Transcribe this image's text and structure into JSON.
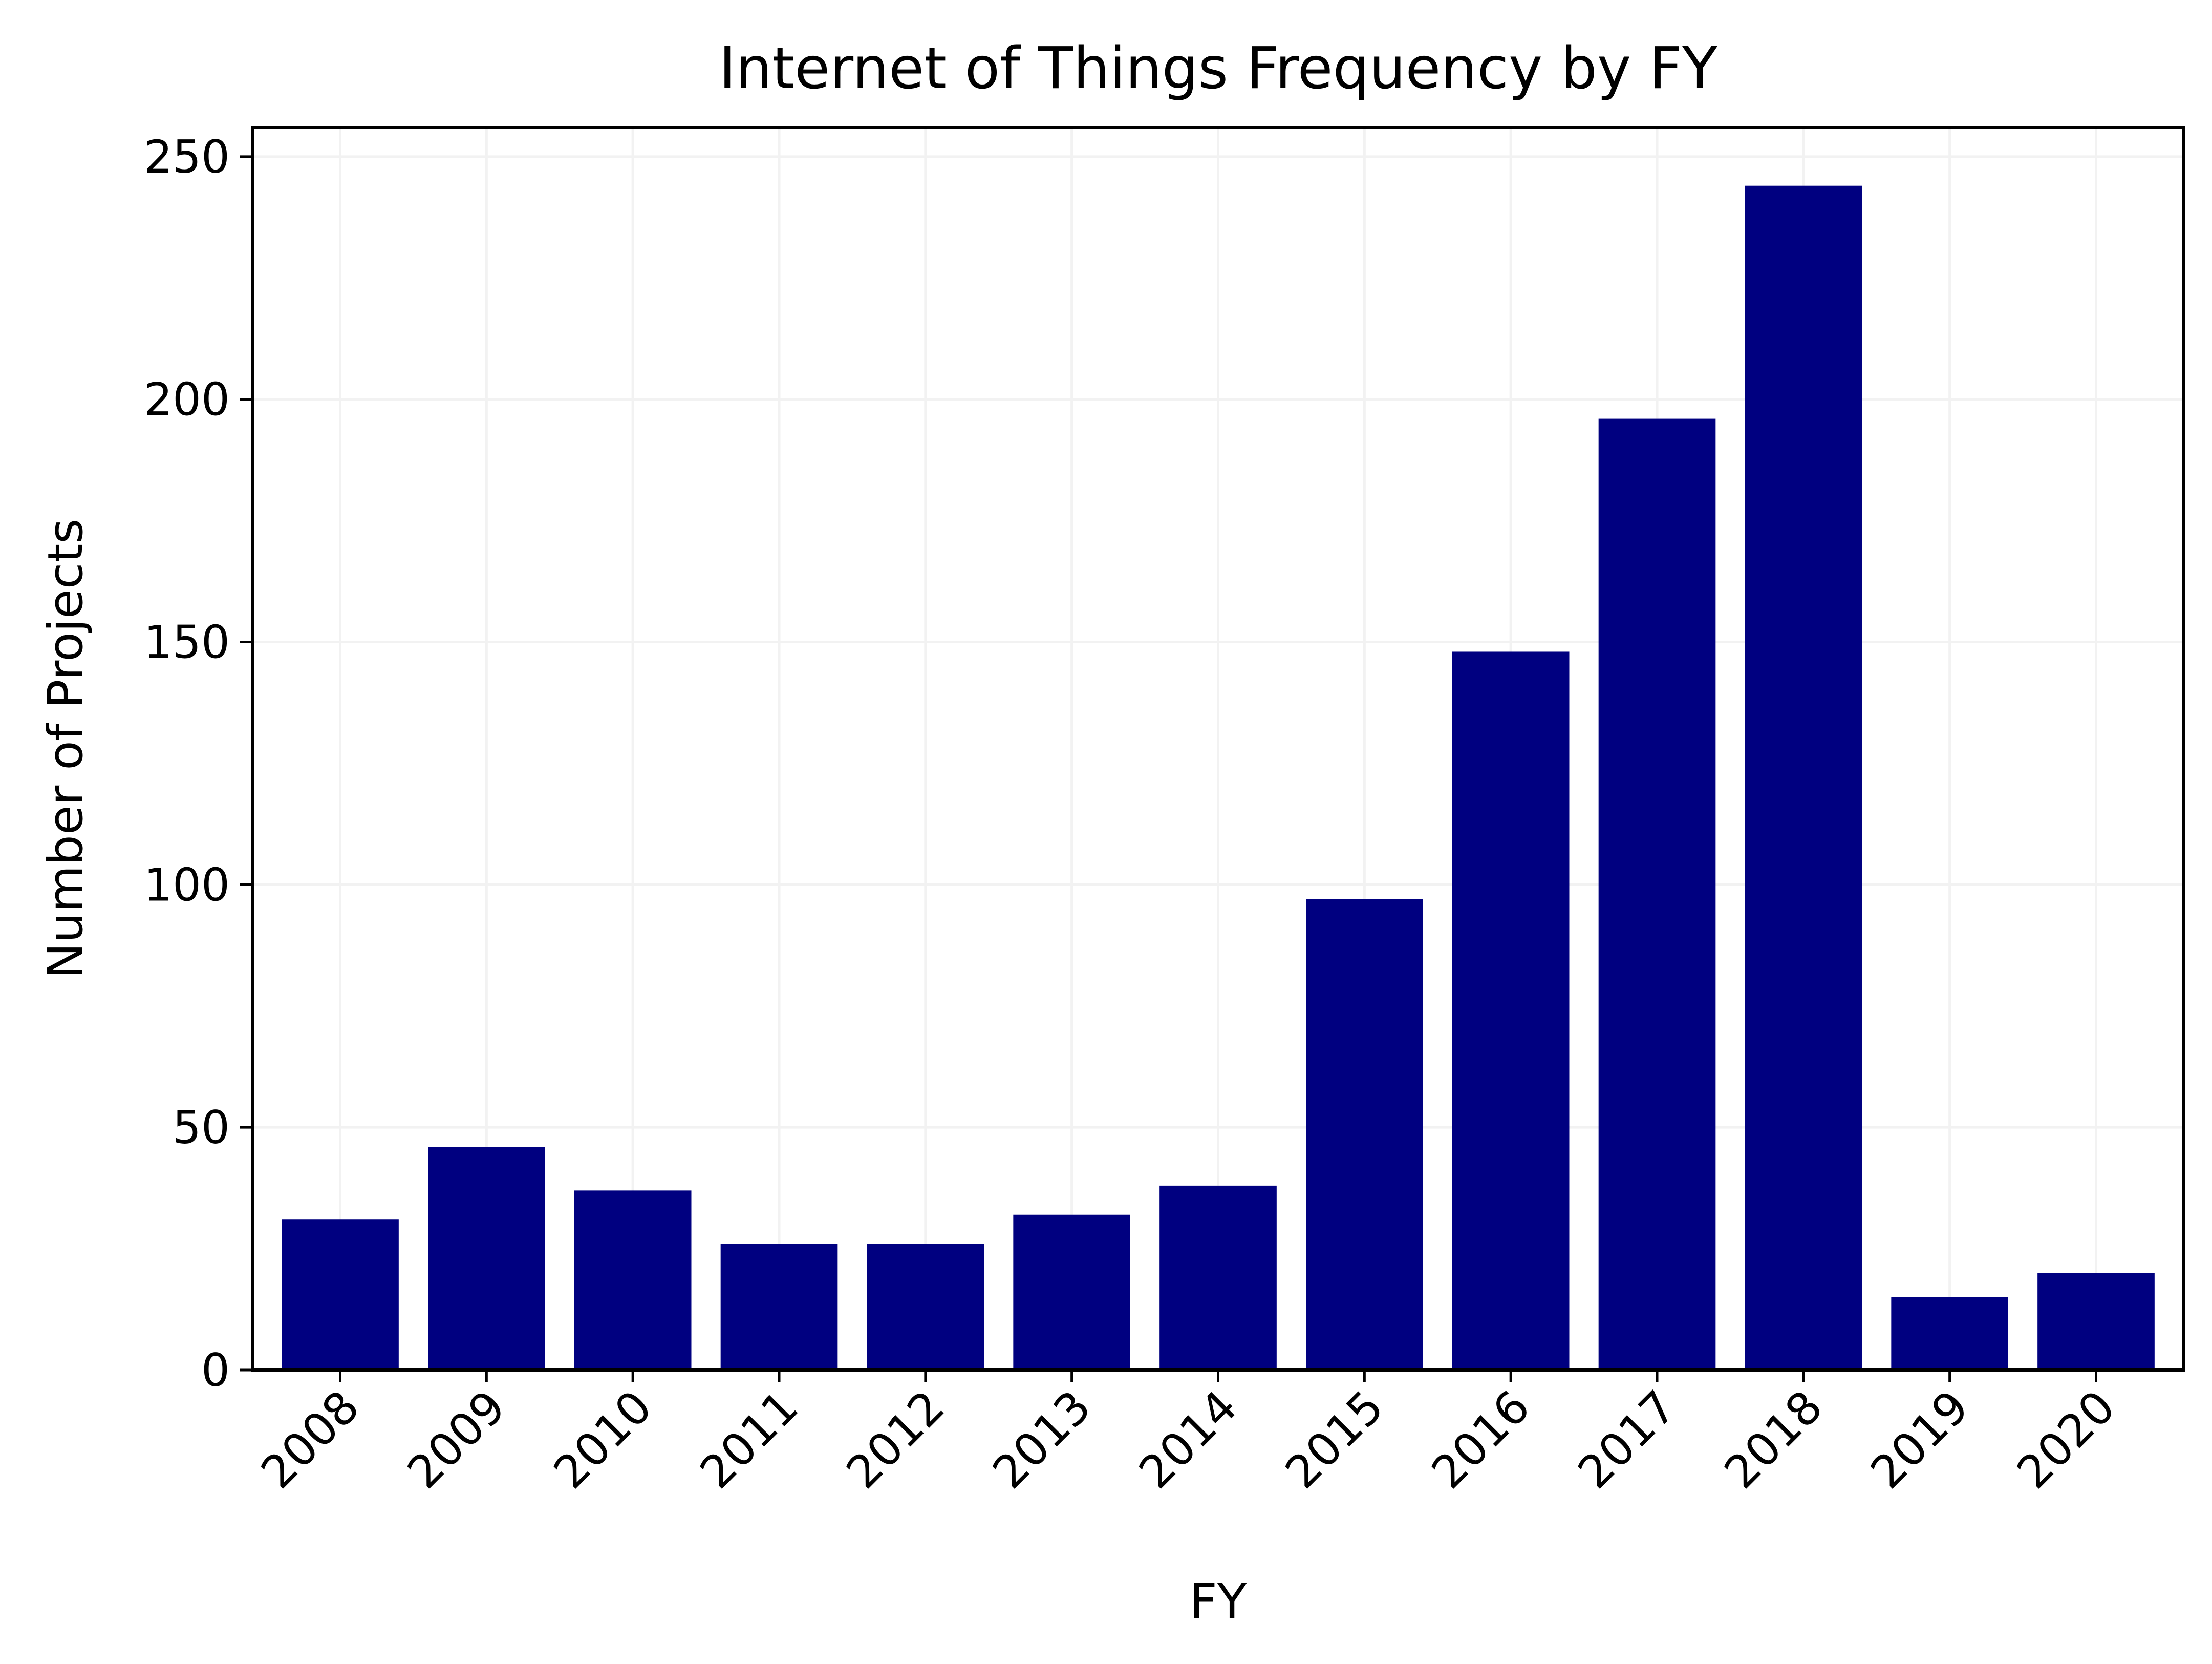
{
  "chart_data": {
    "type": "bar",
    "title": "Internet of Things Frequency by FY",
    "xlabel": "FY",
    "ylabel": "Number of Projects",
    "categories": [
      "2008",
      "2009",
      "2010",
      "2011",
      "2012",
      "2013",
      "2014",
      "2015",
      "2016",
      "2017",
      "2018",
      "2019",
      "2020"
    ],
    "values": [
      31,
      46,
      37,
      26,
      26,
      32,
      38,
      97,
      148,
      196,
      244,
      15,
      20
    ],
    "ylim": [
      0,
      256
    ],
    "yticks": [
      0,
      50,
      100,
      150,
      200,
      250
    ],
    "grid": true,
    "bar_color": "#000080",
    "grid_color": "#f2f2f2",
    "x_tick_rotation": 45
  }
}
